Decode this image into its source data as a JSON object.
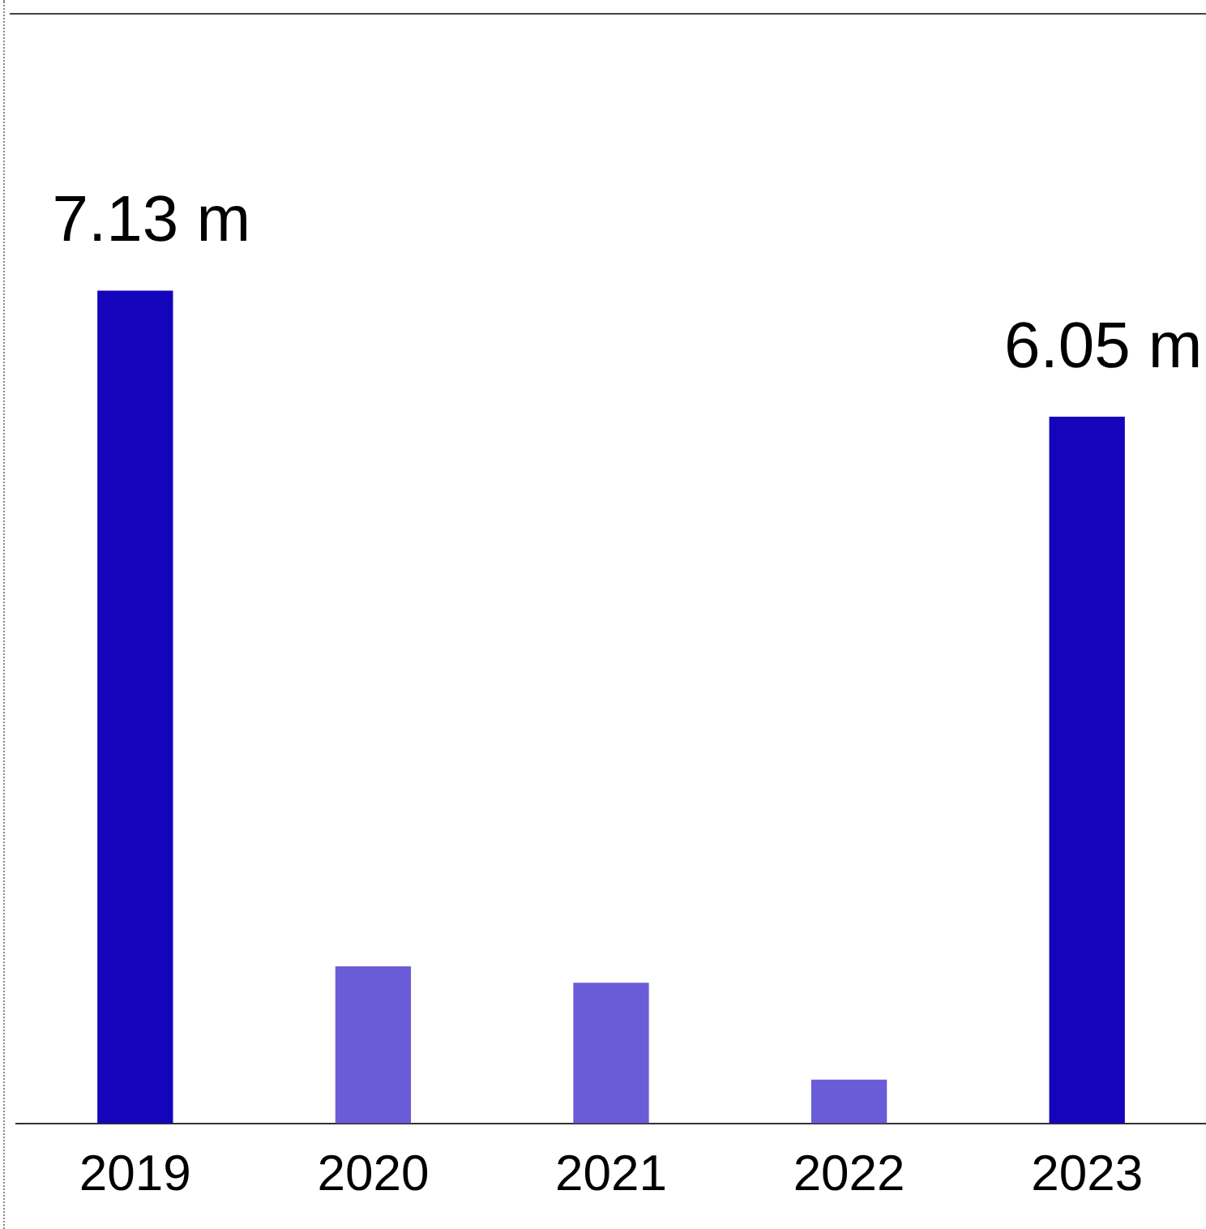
{
  "chart_data": {
    "type": "bar",
    "categories": [
      "2019",
      "2020",
      "2021",
      "2022",
      "2023"
    ],
    "values": [
      7.13,
      1.34,
      1.2,
      0.37,
      6.05
    ],
    "colors": [
      "#1405bd",
      "#6a5cd6",
      "#6a5cd6",
      "#6a5cd6",
      "#1405bd"
    ],
    "value_labels": [
      "7.13 m",
      null,
      null,
      null,
      "6.05 m"
    ],
    "grid": false,
    "legend": false,
    "tick_labels": "x"
  }
}
